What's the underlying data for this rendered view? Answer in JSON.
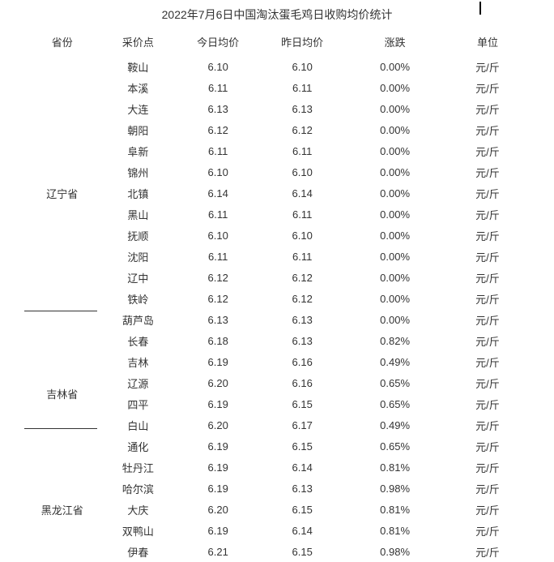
{
  "title": "2022年7月6日中国淘汰蛋毛鸡日收购均价统计",
  "columns": {
    "province": "省份",
    "point": "采价点",
    "today": "今日均价",
    "yesterday": "昨日均价",
    "change": "涨跌",
    "unit": "单位"
  },
  "unit_label": "元/斤",
  "colors": {
    "text": "#333333",
    "background": "#ffffff",
    "divider": "#333333"
  },
  "font": {
    "title_size": 14,
    "cell_size": 13
  },
  "groups": [
    {
      "province": "辽宁省",
      "rows": [
        {
          "point": "鞍山",
          "today": "6.10",
          "yesterday": "6.10",
          "change": "0.00%"
        },
        {
          "point": "本溪",
          "today": "6.11",
          "yesterday": "6.11",
          "change": "0.00%"
        },
        {
          "point": "大连",
          "today": "6.13",
          "yesterday": "6.13",
          "change": "0.00%"
        },
        {
          "point": "朝阳",
          "today": "6.12",
          "yesterday": "6.12",
          "change": "0.00%"
        },
        {
          "point": "阜新",
          "today": "6.11",
          "yesterday": "6.11",
          "change": "0.00%"
        },
        {
          "point": "锦州",
          "today": "6.10",
          "yesterday": "6.10",
          "change": "0.00%"
        },
        {
          "point": "北镇",
          "today": "6.14",
          "yesterday": "6.14",
          "change": "0.00%"
        },
        {
          "point": "黑山",
          "today": "6.11",
          "yesterday": "6.11",
          "change": "0.00%"
        },
        {
          "point": "抚顺",
          "today": "6.10",
          "yesterday": "6.10",
          "change": "0.00%"
        },
        {
          "point": "沈阳",
          "today": "6.11",
          "yesterday": "6.11",
          "change": "0.00%"
        },
        {
          "point": "辽中",
          "today": "6.12",
          "yesterday": "6.12",
          "change": "0.00%"
        },
        {
          "point": "铁岭",
          "today": "6.12",
          "yesterday": "6.12",
          "change": "0.00%"
        },
        {
          "point": "葫芦岛",
          "today": "6.13",
          "yesterday": "6.13",
          "change": "0.00%"
        }
      ]
    },
    {
      "province": "吉林省",
      "rows": [
        {
          "point": "长春",
          "today": "6.18",
          "yesterday": "6.13",
          "change": "0.82%"
        },
        {
          "point": "吉林",
          "today": "6.19",
          "yesterday": "6.16",
          "change": "0.49%"
        },
        {
          "point": "辽源",
          "today": "6.20",
          "yesterday": "6.16",
          "change": "0.65%"
        },
        {
          "point": "四平",
          "today": "6.19",
          "yesterday": "6.15",
          "change": "0.65%"
        },
        {
          "point": "白山",
          "today": "6.20",
          "yesterday": "6.17",
          "change": "0.49%"
        },
        {
          "point": "通化",
          "today": "6.19",
          "yesterday": "6.15",
          "change": "0.65%"
        }
      ]
    },
    {
      "province": "黑龙江省",
      "rows": [
        {
          "point": "牡丹江",
          "today": "6.19",
          "yesterday": "6.14",
          "change": "0.81%"
        },
        {
          "point": "哈尔滨",
          "today": "6.19",
          "yesterday": "6.13",
          "change": "0.98%"
        },
        {
          "point": "大庆",
          "today": "6.20",
          "yesterday": "6.15",
          "change": "0.81%"
        },
        {
          "point": "双鸭山",
          "today": "6.19",
          "yesterday": "6.14",
          "change": "0.81%"
        },
        {
          "point": "伊春",
          "today": "6.21",
          "yesterday": "6.15",
          "change": "0.98%"
        }
      ]
    }
  ]
}
